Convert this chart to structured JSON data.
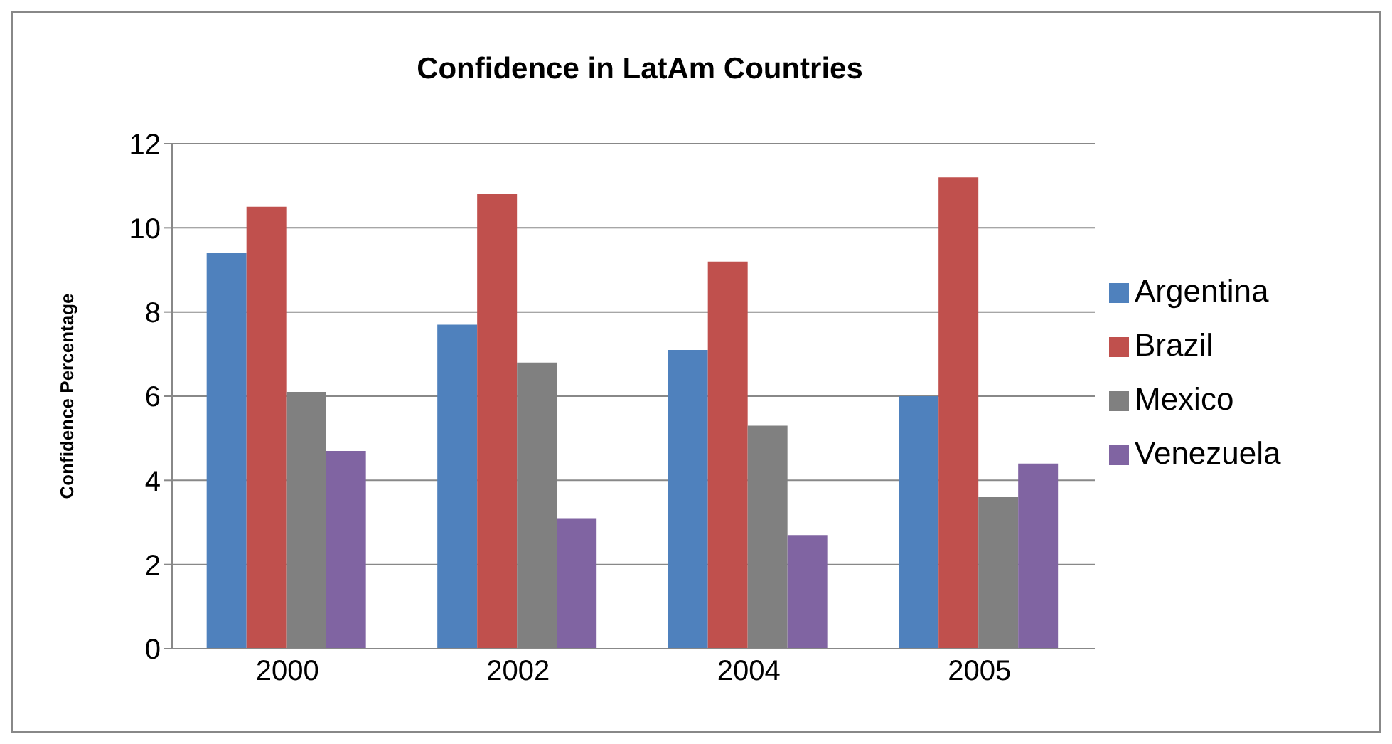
{
  "chart_data": {
    "type": "bar",
    "title": "Confidence in LatAm Countries",
    "ylabel": "Confidence Percentage",
    "categories": [
      "2000",
      "2002",
      "2004",
      "2005"
    ],
    "series": [
      {
        "name": "Argentina",
        "color": "#4f81bd",
        "values": [
          9.4,
          7.7,
          7.1,
          6.0
        ]
      },
      {
        "name": "Brazil",
        "color": "#c0504d",
        "values": [
          10.5,
          10.8,
          9.2,
          11.2
        ]
      },
      {
        "name": "Mexico",
        "color": "#808080",
        "values": [
          6.1,
          6.8,
          5.3,
          3.6
        ]
      },
      {
        "name": "Venezuela",
        "color": "#8064a2",
        "values": [
          4.7,
          3.1,
          2.7,
          4.4
        ]
      }
    ],
    "ylim": [
      0,
      12
    ],
    "yticks": [
      0,
      2,
      4,
      6,
      8,
      10,
      12
    ],
    "grid": "y",
    "legend": "right"
  }
}
